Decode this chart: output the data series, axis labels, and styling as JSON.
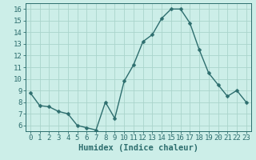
{
  "x": [
    0,
    1,
    2,
    3,
    4,
    5,
    6,
    7,
    8,
    9,
    10,
    11,
    12,
    13,
    14,
    15,
    16,
    17,
    18,
    19,
    20,
    21,
    22,
    23
  ],
  "y": [
    8.8,
    7.7,
    7.6,
    7.2,
    7.0,
    6.0,
    5.8,
    5.6,
    8.0,
    6.6,
    9.8,
    11.2,
    13.2,
    13.8,
    15.2,
    16.0,
    16.0,
    14.8,
    12.5,
    10.5,
    9.5,
    8.5,
    9.0,
    8.0
  ],
  "line_color": "#2d6e6e",
  "marker": "D",
  "marker_size": 2.5,
  "bg_color": "#cceee8",
  "grid_color": "#aad4cc",
  "xlabel": "Humidex (Indice chaleur)",
  "xlim": [
    -0.5,
    23.5
  ],
  "ylim": [
    5.5,
    16.5
  ],
  "yticks": [
    6,
    7,
    8,
    9,
    10,
    11,
    12,
    13,
    14,
    15,
    16
  ],
  "xticks": [
    0,
    1,
    2,
    3,
    4,
    5,
    6,
    7,
    8,
    9,
    10,
    11,
    12,
    13,
    14,
    15,
    16,
    17,
    18,
    19,
    20,
    21,
    22,
    23
  ],
  "tick_color": "#2d6e6e",
  "label_color": "#2d6e6e",
  "font_size_xlabel": 7.5,
  "font_size_tick": 6.5
}
